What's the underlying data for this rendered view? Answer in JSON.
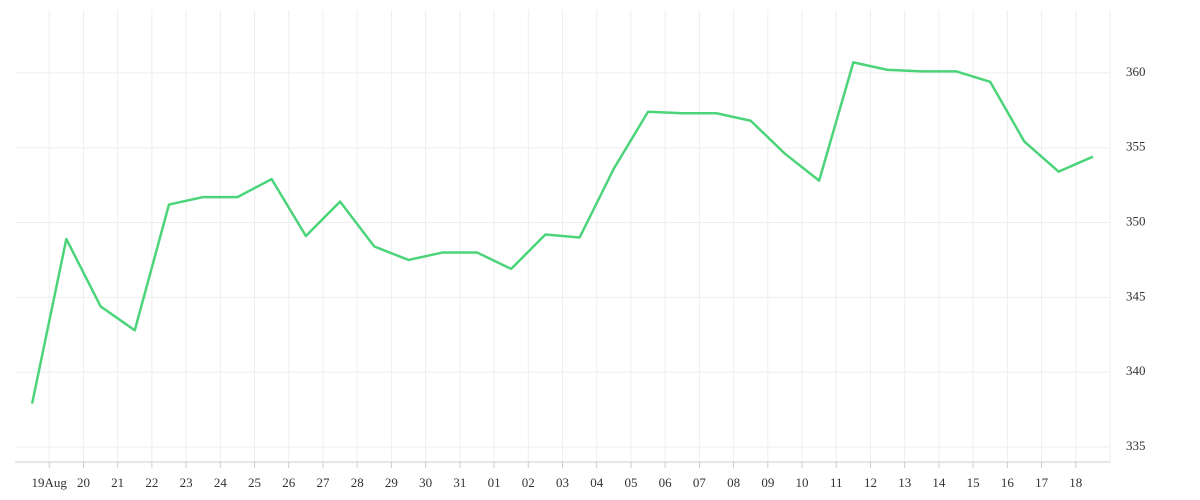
{
  "chart_data": {
    "type": "line",
    "x": [
      -0.5,
      0.5,
      1.5,
      2.5,
      3.5,
      4.5,
      5.5,
      6.5,
      7.5,
      8.5,
      9.5,
      10.5,
      11.5,
      12.5,
      13.5,
      14.5,
      15.5,
      16.5,
      17.5,
      18.5,
      19.5,
      20.5,
      21.5,
      22.5,
      23.5,
      24.5,
      25.5,
      26.5,
      27.5,
      28.5,
      29.5,
      30.5
    ],
    "values": [
      337.9,
      348.9,
      344.4,
      342.8,
      351.2,
      351.7,
      351.7,
      352.9,
      349.1,
      351.4,
      348.4,
      347.5,
      348.0,
      348.0,
      346.9,
      349.2,
      349.0,
      353.6,
      357.4,
      357.3,
      357.3,
      356.8,
      354.6,
      352.8,
      360.7,
      360.2,
      360.1,
      360.1,
      359.4,
      355.4,
      353.4,
      354.4
    ],
    "color": "#4cd47a",
    "xlim": [
      -1,
      31
    ],
    "xticks": [
      {
        "value": 0,
        "label": "19Aug"
      },
      {
        "value": 1,
        "label": "20"
      },
      {
        "value": 2,
        "label": "21"
      },
      {
        "value": 3,
        "label": "22"
      },
      {
        "value": 4,
        "label": "23"
      },
      {
        "value": 5,
        "label": "24"
      },
      {
        "value": 6,
        "label": "25"
      },
      {
        "value": 7,
        "label": "26"
      },
      {
        "value": 8,
        "label": "27"
      },
      {
        "value": 9,
        "label": "28"
      },
      {
        "value": 10,
        "label": "29"
      },
      {
        "value": 11,
        "label": "30"
      },
      {
        "value": 12,
        "label": "31"
      },
      {
        "value": 13,
        "label": "01"
      },
      {
        "value": 14,
        "label": "02"
      },
      {
        "value": 15,
        "label": "03"
      },
      {
        "value": 16,
        "label": "04"
      },
      {
        "value": 17,
        "label": "05"
      },
      {
        "value": 18,
        "label": "06"
      },
      {
        "value": 19,
        "label": "07"
      },
      {
        "value": 20,
        "label": "08"
      },
      {
        "value": 21,
        "label": "09"
      },
      {
        "value": 22,
        "label": "10"
      },
      {
        "value": 23,
        "label": "11"
      },
      {
        "value": 24,
        "label": "12"
      },
      {
        "value": 25,
        "label": "13"
      },
      {
        "value": 26,
        "label": "14"
      },
      {
        "value": 27,
        "label": "15"
      },
      {
        "value": 28,
        "label": "16"
      },
      {
        "value": 29,
        "label": "17"
      },
      {
        "value": 30,
        "label": "18"
      }
    ],
    "ylim": [
      334,
      364.2
    ],
    "yticks": [
      335,
      340,
      345,
      350,
      355,
      360
    ],
    "grid": true
  }
}
